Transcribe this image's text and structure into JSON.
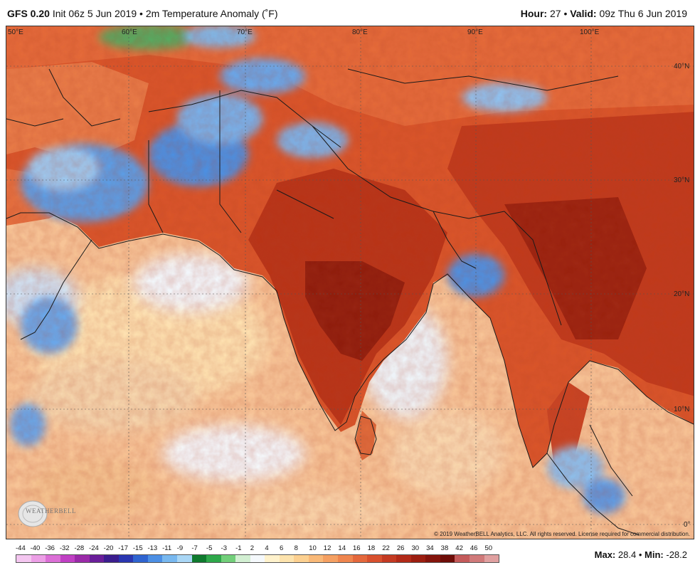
{
  "header": {
    "model": "GFS 0.20",
    "init": "Init 06z 5 Jun 2019",
    "separator": "•",
    "product": "2m Temperature Anomaly (˚F)",
    "hour_label": "Hour:",
    "hour_value": "27",
    "valid_label": "Valid:",
    "valid_value": "09z Thu 6 Jun 2019"
  },
  "map": {
    "longitude_labels": [
      "50°E",
      "60°E",
      "70°E",
      "80°E",
      "90°E",
      "100°E"
    ],
    "latitude_labels": [
      "40°N",
      "30°N",
      "20°N",
      "10°N",
      "0°"
    ],
    "copyright": "© 2019 WeatherBELL Analytics, LLC. All rights reserved. License required for commercial distribution.",
    "logo_text": "WEATHERBELL"
  },
  "legend": {
    "labels": [
      "-44",
      "-40",
      "-36",
      "-32",
      "-28",
      "-24",
      "-20",
      "-17",
      "-15",
      "-13",
      "-11",
      "-9",
      "-7",
      "-5",
      "-3",
      "-1",
      "2",
      "4",
      "6",
      "8",
      "10",
      "12",
      "14",
      "16",
      "18",
      "22",
      "26",
      "30",
      "34",
      "38",
      "42",
      "46",
      "50"
    ],
    "colors": [
      "#f4c6f0",
      "#ec9fe6",
      "#db6fd6",
      "#c040c4",
      "#9a2aa8",
      "#6a1e9a",
      "#3b1d8e",
      "#2a36b0",
      "#2f64d0",
      "#4c8fe4",
      "#78b8ef",
      "#a9d6f5",
      "#0f7a2e",
      "#2ea84a",
      "#72cf7a",
      "#d2efd2",
      "#f5f9fc",
      "#fff2cc",
      "#fde3ad",
      "#fcd090",
      "#f9b978",
      "#f5a062",
      "#ef854e",
      "#e4683c",
      "#d8502e",
      "#c43a22",
      "#b22a18",
      "#9c1e10",
      "#84140c",
      "#6e0d08",
      "#c45a5a",
      "#d07a7a",
      "#e0a0a0"
    ]
  },
  "stats": {
    "max_label": "Max:",
    "max_value": "28.4",
    "min_label": "Min:",
    "min_value": "-28.2",
    "separator": "•"
  }
}
